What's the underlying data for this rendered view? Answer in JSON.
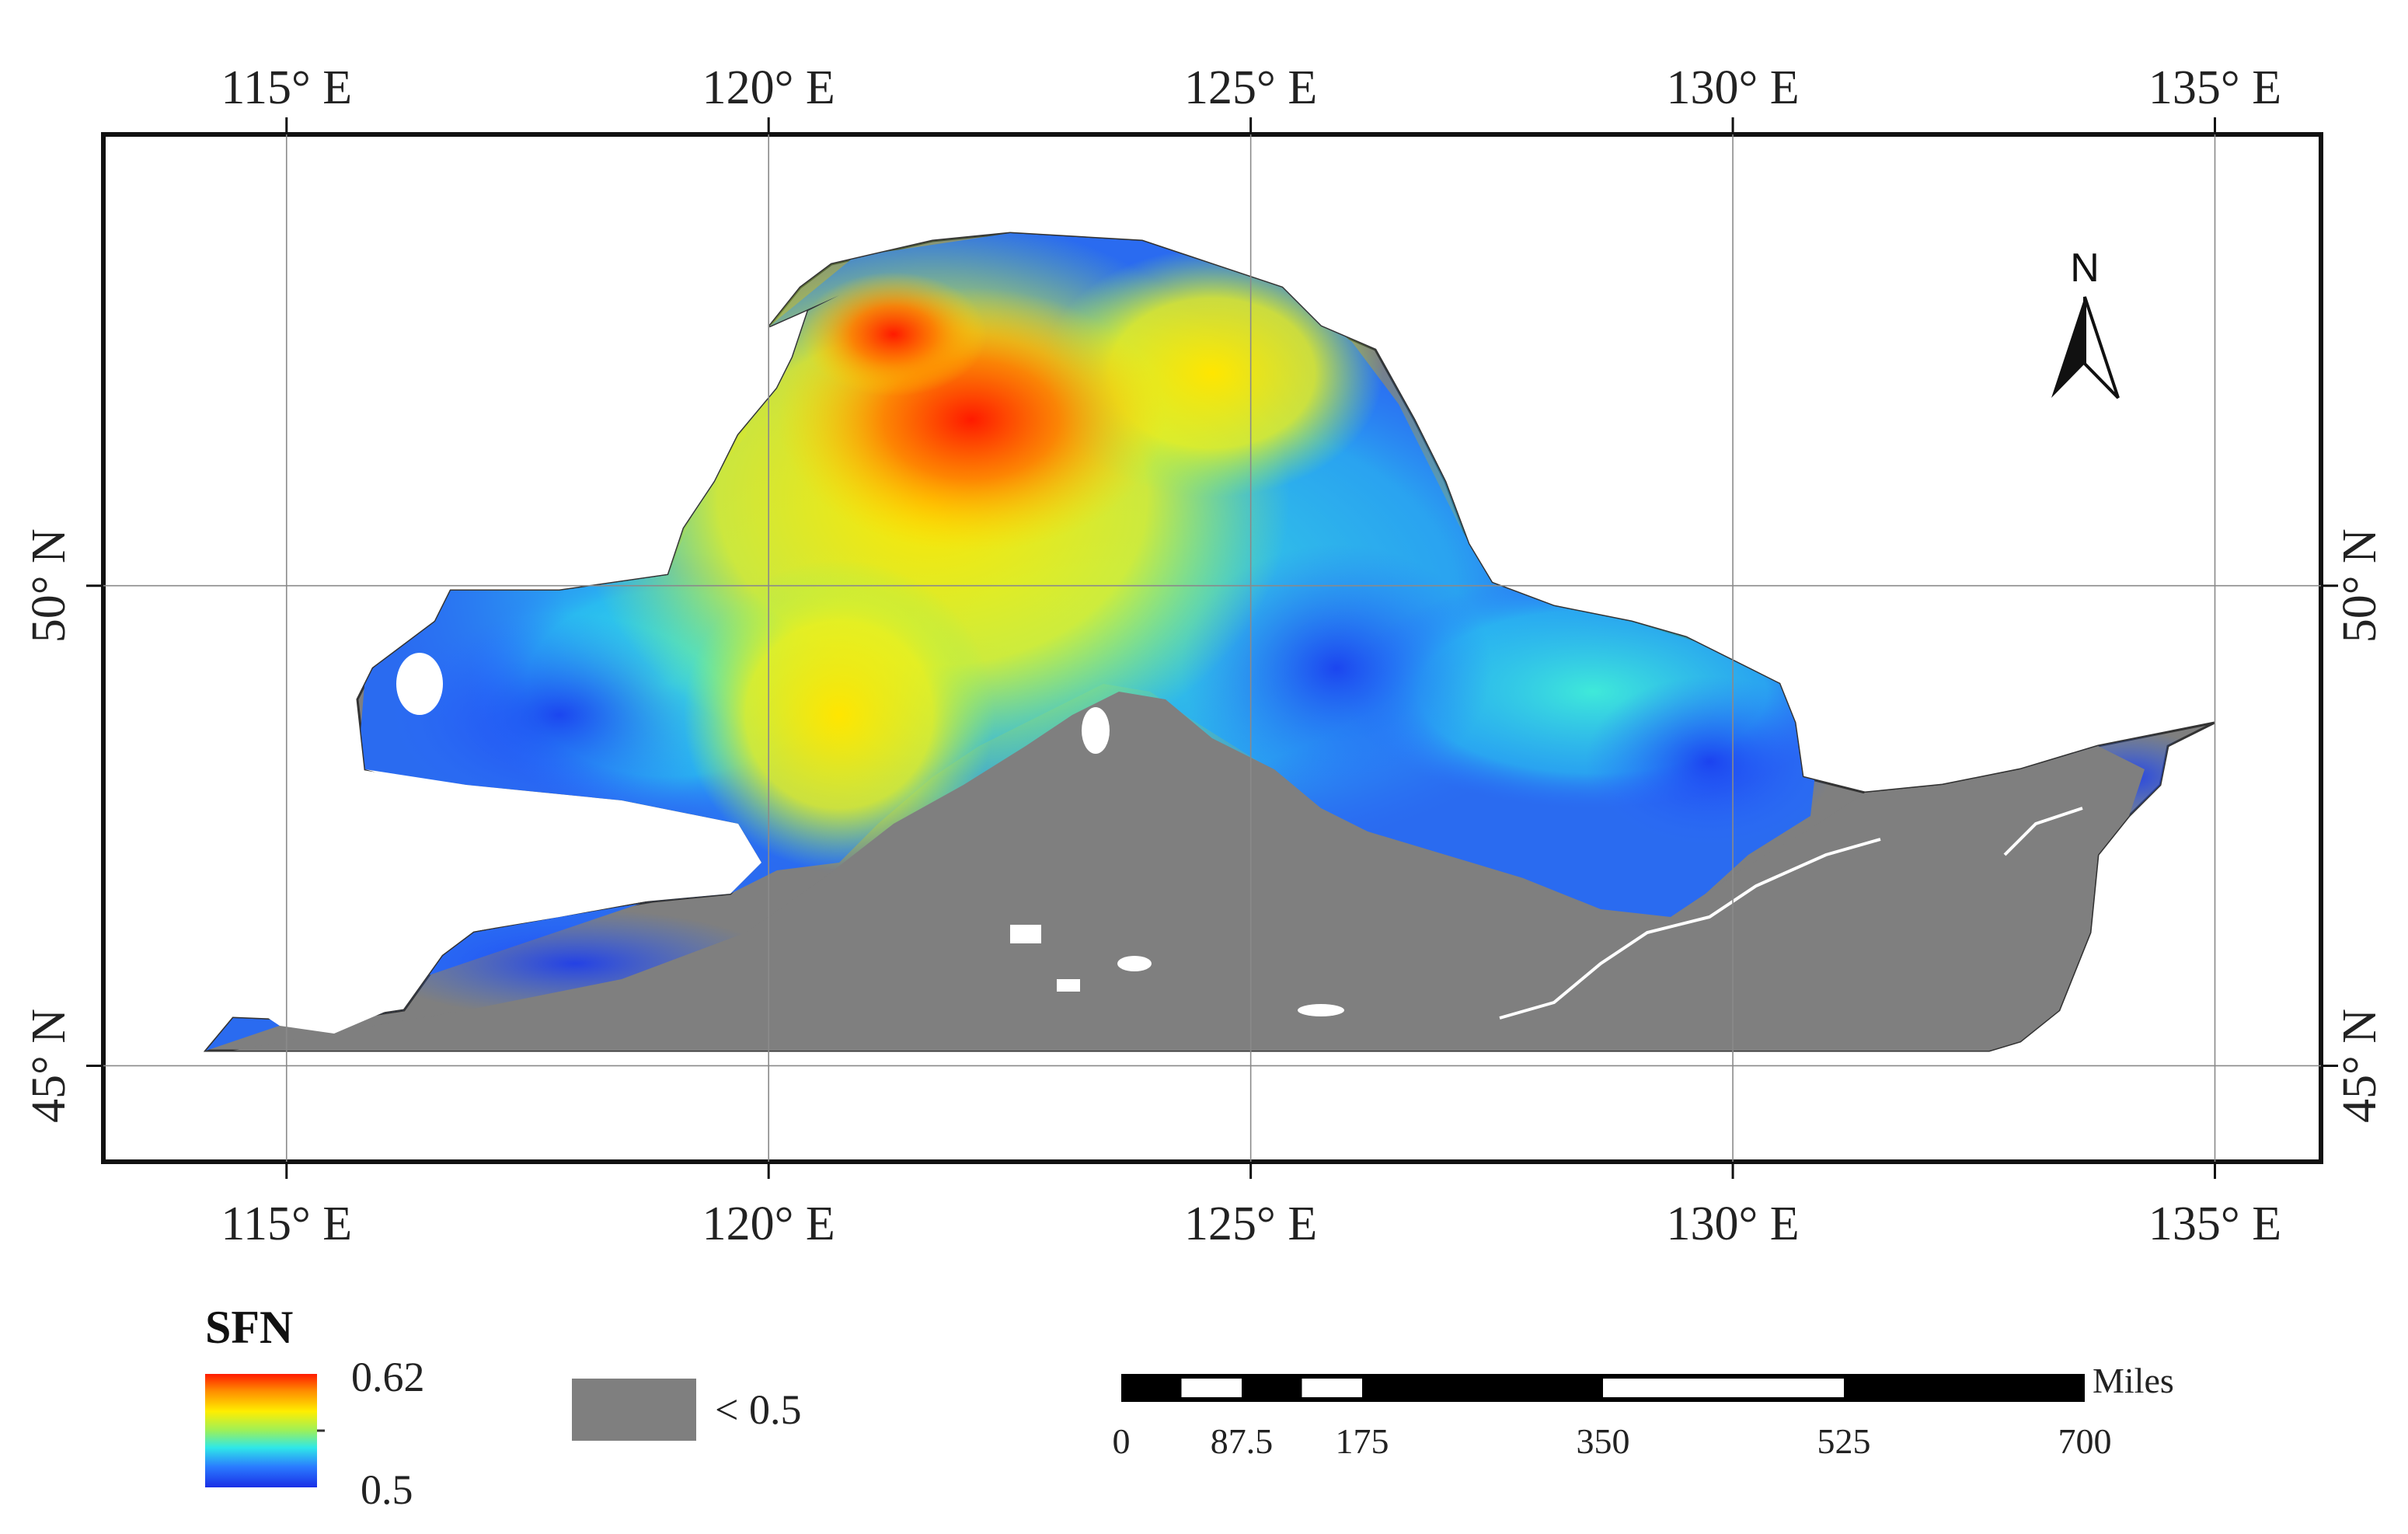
{
  "map": {
    "lon_ticks": [
      {
        "value": 115,
        "label": "115° E"
      },
      {
        "value": 120,
        "label": "120° E"
      },
      {
        "value": 125,
        "label": "125° E"
      },
      {
        "value": 130,
        "label": "130° E"
      },
      {
        "value": 135,
        "label": "135° E"
      }
    ],
    "lat_ticks": [
      {
        "value": 50,
        "label": "50° N"
      },
      {
        "value": 45,
        "label": "45° N"
      }
    ],
    "extent": {
      "lon_min": 113.1,
      "lon_max": 136.1,
      "lat_min": 44.0,
      "lat_max": 54.7
    },
    "land_color": "#7f7f7f",
    "border_color": "#111111"
  },
  "north_arrow": {
    "label": "N",
    "icon": "north-arrow-icon"
  },
  "legend": {
    "title": "SFN",
    "max_label": "0.62",
    "min_label": "0.5",
    "gradient": [
      "#ff1a00",
      "#ff8c00",
      "#ffee00",
      "#9cf05a",
      "#2fe8e8",
      "#2a7bff",
      "#1a2ee6"
    ],
    "mask_label": "< 0.5",
    "mask_color": "#7f7f7f"
  },
  "scalebar": {
    "unit": "Miles",
    "labels": [
      "0",
      "87.5",
      "175",
      "350",
      "525",
      "700"
    ],
    "values": [
      0,
      87.5,
      175,
      350,
      525,
      700
    ]
  }
}
